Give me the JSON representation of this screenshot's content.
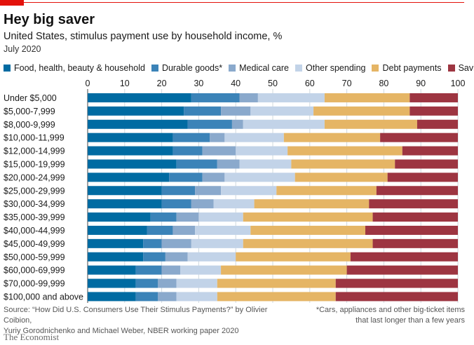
{
  "header": {
    "title": "Hey big saver",
    "subtitle": "United States, stimulus payment use by household income, %",
    "period": "July 2020"
  },
  "chart_data": {
    "type": "bar",
    "orientation": "horizontal",
    "stacked": true,
    "xlim": [
      0,
      100
    ],
    "xticks": [
      "0",
      "10",
      "20",
      "30",
      "40",
      "50",
      "60",
      "70",
      "80",
      "90",
      "100"
    ],
    "grid": true,
    "legend_position": "top",
    "categories": [
      "Under $5,000",
      "$5,000-7,999",
      "$8,000-9,999",
      "$10,000-11,999",
      "$12,000-14,999",
      "$15,000-19,999",
      "$20,000-24,999",
      "$25,000-29,999",
      "$30,000-34,999",
      "$35,000-39,999",
      "$40,000-44,999",
      "$45,000-49,999",
      "$50,000-59,999",
      "$60,000-69,999",
      "$70,000-99,999",
      "$100,000 and above"
    ],
    "series": [
      {
        "name": "Food, health, beauty & household",
        "color": "#006ba2",
        "values": [
          28,
          26,
          27,
          23,
          23,
          24,
          22,
          20,
          20,
          17,
          16,
          15,
          15,
          13,
          13,
          13
        ]
      },
      {
        "name": "Durable goods*",
        "color": "#3b83b8",
        "values": [
          13,
          10,
          12,
          10,
          8,
          11,
          9,
          9,
          8,
          7,
          7,
          5,
          6,
          7,
          6,
          6
        ]
      },
      {
        "name": "Medical care",
        "color": "#8aa9cc",
        "values": [
          5,
          8,
          3,
          4,
          9,
          6,
          6,
          7,
          6,
          6,
          6,
          8,
          6,
          5,
          5,
          5
        ]
      },
      {
        "name": "Other spending",
        "color": "#c2d3e8",
        "values": [
          18,
          17,
          22,
          16,
          14,
          14,
          19,
          15,
          11,
          12,
          15,
          14,
          13,
          11,
          11,
          11
        ]
      },
      {
        "name": "Debt payments",
        "color": "#e5b565",
        "values": [
          23,
          26,
          25,
          26,
          31,
          28,
          25,
          27,
          31,
          35,
          31,
          35,
          31,
          34,
          32,
          32
        ]
      },
      {
        "name": "Savings",
        "color": "#9d3541",
        "values": [
          13,
          13,
          11,
          21,
          15,
          17,
          19,
          22,
          24,
          23,
          25,
          23,
          29,
          30,
          33,
          33
        ]
      }
    ]
  },
  "footer": {
    "source_line1": "Source: “How Did U.S. Consumers Use Their Stimulus Payments?” by Olivier Coibion,",
    "source_line2": "Yuriy Gorodnichenko and Michael Weber, NBER working paper 2020",
    "note_line1": "*Cars, appliances and other big-ticket items",
    "note_line2": "that last longer than a few years",
    "brand": "The Economist"
  }
}
